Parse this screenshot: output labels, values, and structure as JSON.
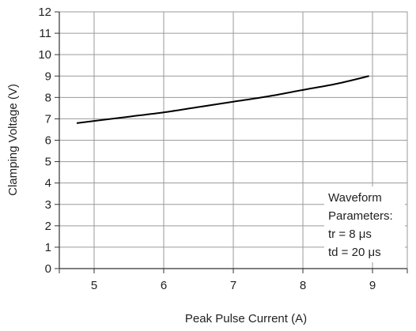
{
  "chart_data": {
    "type": "line",
    "title": "",
    "xlabel": "Peak Pulse Current (A)",
    "ylabel": "Clamping Voltage (V)",
    "xlim": [
      4.5,
      9.5
    ],
    "ylim": [
      0,
      12
    ],
    "x_ticks": [
      5,
      6,
      7,
      8,
      9
    ],
    "y_ticks": [
      0,
      1,
      2,
      3,
      4,
      5,
      6,
      7,
      8,
      9,
      10,
      11,
      12
    ],
    "grid": true,
    "legend": "none",
    "series": [
      {
        "x": [
          4.75,
          5.0,
          5.5,
          6.0,
          6.5,
          7.0,
          7.5,
          8.0,
          8.5,
          8.95
        ],
        "y": [
          6.8,
          6.9,
          7.1,
          7.3,
          7.55,
          7.8,
          8.05,
          8.35,
          8.65,
          9.0
        ]
      }
    ],
    "annotation": {
      "lines": [
        "Waveform",
        "Parameters:",
        "tr = 8 μs",
        "td = 20 μs"
      ],
      "placement": "bottom-right"
    },
    "colors": {
      "line": "#000000",
      "grid": "#9a9a9a",
      "axis": "#333333"
    }
  }
}
